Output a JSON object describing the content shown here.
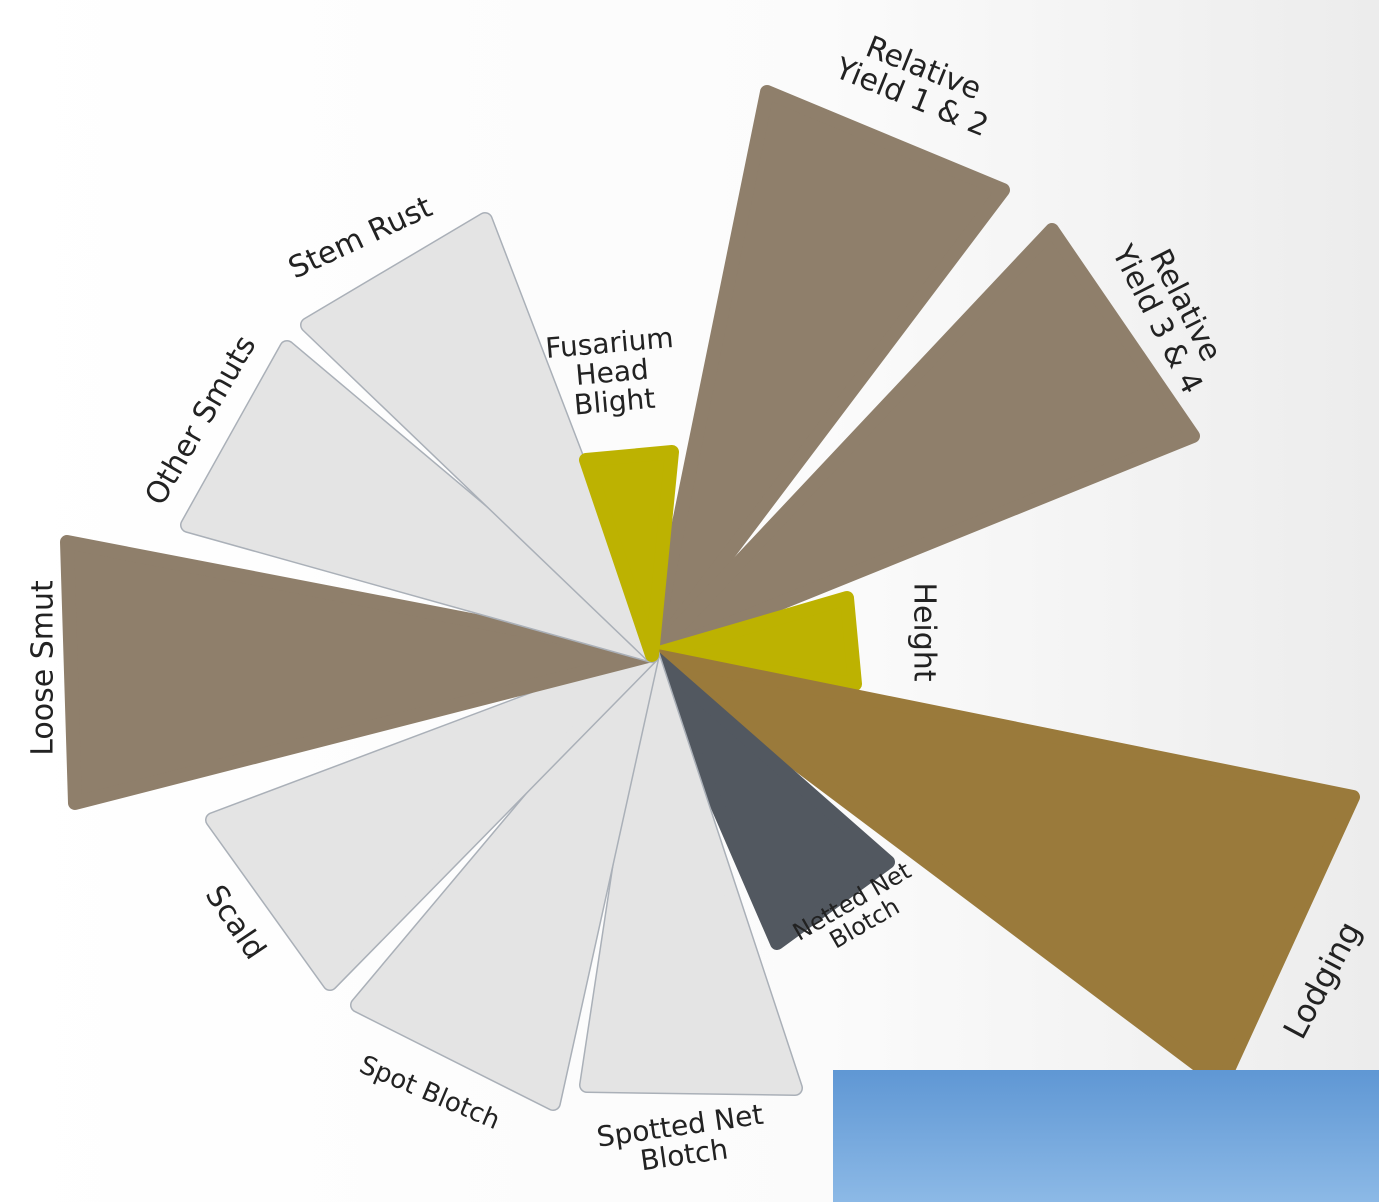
{
  "segments": [
    {
      "label": [
        "Relative",
        "Yield 1 & 2"
      ],
      "color": "#8f7f6b"
    },
    {
      "label": [
        "Relative",
        "Yield 3 & 4"
      ],
      "color": "#8f7f6b"
    },
    {
      "label": [
        "Height"
      ],
      "color": "#bdb201"
    },
    {
      "label": [
        "Lodging"
      ],
      "color": "#9a7a3b"
    },
    {
      "label": [
        "Netted Net",
        "Blotch"
      ],
      "color": "#525860"
    },
    {
      "label": [
        "Spotted Net",
        "Blotch"
      ],
      "color": "#e4e4e4"
    },
    {
      "label": [
        "Spot Blotch"
      ],
      "color": "#e4e4e4"
    },
    {
      "label": [
        "Scald"
      ],
      "color": "#e4e4e4"
    },
    {
      "label": [
        "Loose Smut"
      ],
      "color": "#8f7f6b"
    },
    {
      "label": [
        "Other Smuts"
      ],
      "color": "#e4e4e4"
    },
    {
      "label": [
        "Stem Rust"
      ],
      "color": "#e4e4e4"
    },
    {
      "label": [
        "Fusarium",
        "Head",
        "Blight"
      ],
      "color": "#bdb201"
    }
  ]
}
